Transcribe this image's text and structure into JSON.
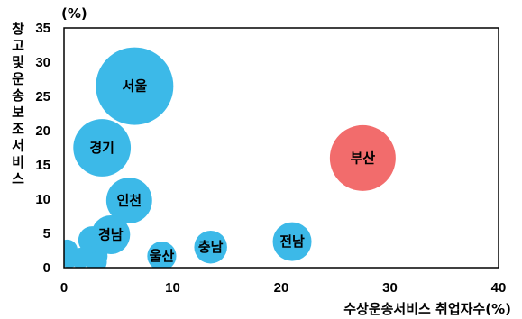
{
  "chart_data": {
    "type": "bubble",
    "title": "",
    "xlabel": "수상운송서비스 취업자수(%)",
    "ylabel": "창고및운송보조서비스",
    "y_unit_label": "(%)",
    "xlim": [
      0,
      40
    ],
    "ylim": [
      0,
      35
    ],
    "xticks": [
      "0",
      "10",
      "20",
      "30",
      "40"
    ],
    "yticks": [
      "0",
      "5",
      "10",
      "15",
      "20",
      "25",
      "30",
      "35"
    ],
    "grid": false,
    "colors": {
      "default": "#3cb9e8",
      "highlight": "#f26c6c"
    },
    "points": [
      {
        "label": "서울",
        "x": 6.5,
        "y": 26.5,
        "size": 1.0,
        "highlight": false
      },
      {
        "label": "경기",
        "x": 3.5,
        "y": 17.5,
        "size": 0.55,
        "highlight": false
      },
      {
        "label": "인천",
        "x": 6.0,
        "y": 9.8,
        "size": 0.35,
        "highlight": false
      },
      {
        "label": "경남",
        "x": 4.3,
        "y": 4.8,
        "size": 0.25,
        "highlight": false
      },
      {
        "label": "울산",
        "x": 9.0,
        "y": 1.7,
        "size": 0.14,
        "highlight": false
      },
      {
        "label": "충남",
        "x": 13.5,
        "y": 3.0,
        "size": 0.18,
        "highlight": false
      },
      {
        "label": "전남",
        "x": 21.0,
        "y": 3.8,
        "size": 0.25,
        "highlight": false
      },
      {
        "label": "부산",
        "x": 27.5,
        "y": 16.0,
        "size": 0.72,
        "highlight": true
      },
      {
        "label": "",
        "x": 2.6,
        "y": 4.0,
        "size": 0.13,
        "highlight": false
      },
      {
        "label": "",
        "x": 0.3,
        "y": 2.6,
        "size": 0.07,
        "highlight": false
      },
      {
        "label": "",
        "x": 0.5,
        "y": 1.5,
        "size": 0.07,
        "highlight": false
      },
      {
        "label": "",
        "x": 1.5,
        "y": 1.4,
        "size": 0.07,
        "highlight": false
      },
      {
        "label": "",
        "x": 3.0,
        "y": 1.7,
        "size": 0.08,
        "highlight": false
      },
      {
        "label": "",
        "x": 3.0,
        "y": 0.8,
        "size": 0.07,
        "highlight": false
      }
    ]
  }
}
